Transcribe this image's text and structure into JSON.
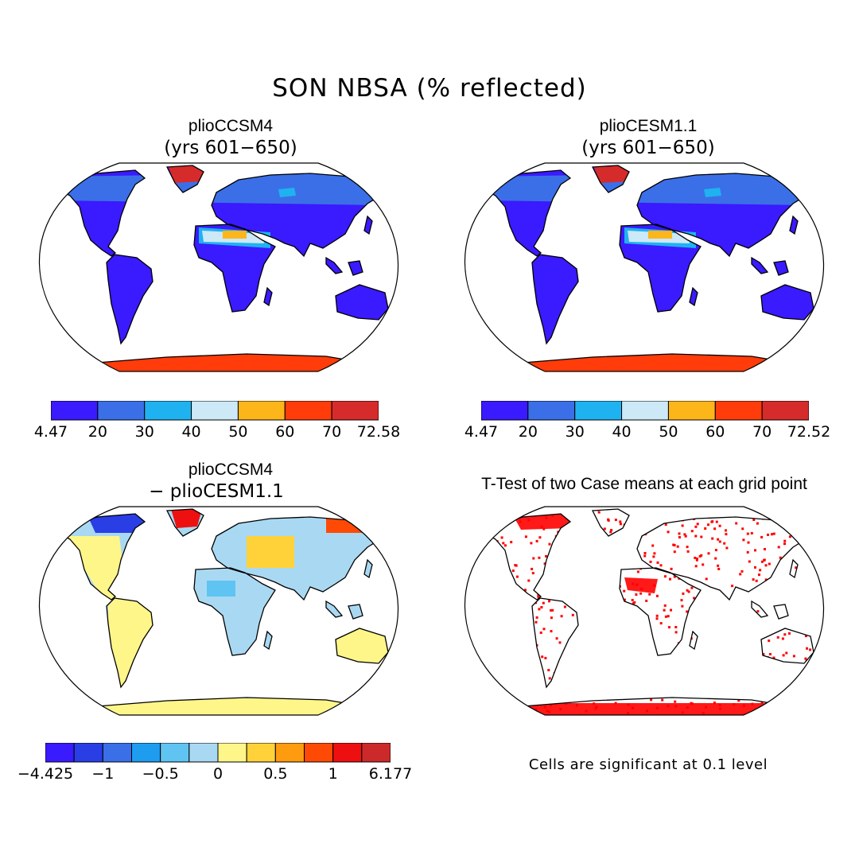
{
  "figure": {
    "title": "SON NBSA (% reflected)",
    "note": "Cells are significant at 0.1 level"
  },
  "panels": [
    {
      "id": "top-left",
      "title": "plioCCSM4",
      "subtitle": "(yrs 601−650)",
      "colorbar": {
        "colors": [
          "#3a1aff",
          "#3b6fe8",
          "#1fb2f0",
          "#cde8f7",
          "#fcb619",
          "#ff3c0a",
          "#d62b2b"
        ],
        "labels": [
          "4.47",
          "20",
          "30",
          "40",
          "50",
          "60",
          "70",
          "72.58"
        ]
      }
    },
    {
      "id": "top-right",
      "title": "plioCESM1.1",
      "subtitle": "(yrs 601−650)",
      "colorbar": {
        "colors": [
          "#3a1aff",
          "#3b6fe8",
          "#1fb2f0",
          "#cde8f7",
          "#fcb619",
          "#ff3c0a",
          "#d62b2b"
        ],
        "labels": [
          "4.47",
          "20",
          "30",
          "40",
          "50",
          "60",
          "70",
          "72.52"
        ]
      }
    },
    {
      "id": "bottom-left",
      "title": "plioCCSM4",
      "subtitle": "− plioCESM1.1",
      "colorbar": {
        "colors": [
          "#3a1aff",
          "#2a3ee6",
          "#3b6fe8",
          "#1e9df0",
          "#5fc4f2",
          "#a9d9f2",
          "#fff68a",
          "#ffd23a",
          "#ff9b0f",
          "#ff4a06",
          "#ee1010",
          "#cc2a2a"
        ],
        "labels": [
          "−4.425",
          "−1",
          "−0.5",
          "0",
          "0.5",
          "1",
          "6.177"
        ]
      }
    },
    {
      "id": "bottom-right",
      "title": "T-Test of two Case means at each grid point",
      "subtitle": "",
      "marker_color": "#ff0000"
    }
  ]
}
